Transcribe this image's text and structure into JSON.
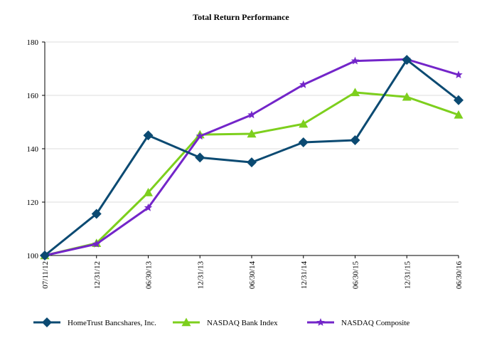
{
  "chart_data": {
    "type": "line",
    "title": "Total Return Performance",
    "categories": [
      "07/11/12",
      "12/31/12",
      "06/30/13",
      "12/31/13",
      "06/30/14",
      "12/31/14",
      "06/30/15",
      "12/31/15",
      "06/30/16"
    ],
    "ylim": [
      100,
      180
    ],
    "yticks": [
      100,
      120,
      140,
      160,
      180
    ],
    "grid": true,
    "legend_position": "bottom",
    "series": [
      {
        "name": "HomeTrust Bancshares, Inc.",
        "color": "#0b4a72",
        "marker": "diamond",
        "values": [
          100,
          115.6,
          145,
          136.7,
          134.9,
          142.4,
          143.2,
          173.3,
          158.2
        ]
      },
      {
        "name": "NASDAQ Bank Index",
        "color": "#7dcf1d",
        "marker": "triangle",
        "values": [
          100,
          104.6,
          123.6,
          145.3,
          145.6,
          149.3,
          161.1,
          159.4,
          152.7
        ]
      },
      {
        "name": "NASDAQ Composite",
        "color": "#7325c9",
        "marker": "star",
        "values": [
          100,
          104.3,
          117.9,
          144.7,
          152.7,
          164,
          172.9,
          173.5,
          167.7
        ]
      }
    ]
  }
}
